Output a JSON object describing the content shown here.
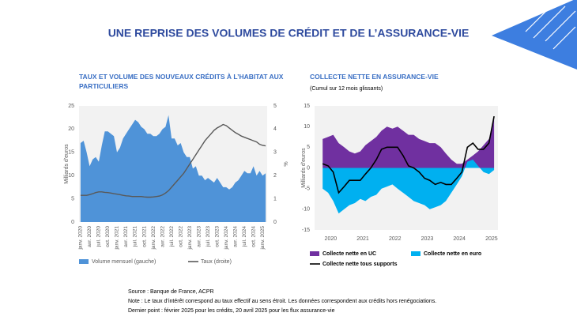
{
  "title": "UNE REPRISE DES VOLUMES DE CRÉDIT ET DE L’ASSURANCE-VIE",
  "chart_data": [
    {
      "type": "area",
      "title": "TAUX ET VOLUME DES NOUVEAUX CRÉDITS À L’HABITAT AUX PARTICULIERS",
      "y_label": "Milliards d'euros",
      "y2_label": "%",
      "categories": [
        "janv. 2020",
        null,
        null,
        "avr. 2020",
        null,
        null,
        "juil. 2020",
        null,
        null,
        "oct. 2020",
        null,
        null,
        "janv. 2021",
        null,
        null,
        "avr. 2021",
        null,
        null,
        "juil. 2021",
        null,
        null,
        "oct. 2021",
        null,
        null,
        "janv. 2022",
        null,
        null,
        "avr. 2022",
        null,
        null,
        "juil. 2022",
        null,
        null,
        "oct. 2022",
        null,
        null,
        "janv. 2023",
        null,
        null,
        "avr. 2023",
        null,
        null,
        "juil. 2023",
        null,
        null,
        "oct. 2023",
        null,
        null,
        "janv. 2024",
        null,
        null,
        "avr. 2024",
        null,
        null,
        "juil. 2024",
        null,
        null,
        "oct. 2024",
        null,
        null,
        "janv. 2025",
        null
      ],
      "series": [
        {
          "name": "Volume mensuel (gauche)",
          "type": "area",
          "color": "#4f93d8",
          "values": [
            17,
            17.5,
            15,
            12,
            13.5,
            14,
            13,
            16.5,
            19.5,
            19.5,
            19,
            18.5,
            15,
            16,
            18,
            19,
            20,
            21,
            22,
            21.5,
            20.5,
            20,
            19,
            19,
            18.5,
            18.5,
            19,
            20,
            20.5,
            23,
            18,
            18,
            16.5,
            17,
            15,
            14,
            14,
            11.5,
            12,
            10,
            10,
            9,
            9.5,
            9,
            8.5,
            9.5,
            8.5,
            7.5,
            7.5,
            7,
            7.5,
            8.5,
            9,
            10,
            11,
            10.5,
            10.5,
            12,
            10,
            11,
            10,
            10.5
          ]
        },
        {
          "name": "Taux (droite)",
          "type": "line",
          "axis": "y2",
          "color": "#595959",
          "values": [
            1.15,
            1.15,
            1.15,
            1.18,
            1.22,
            1.27,
            1.3,
            1.3,
            1.28,
            1.27,
            1.25,
            1.22,
            1.2,
            1.18,
            1.15,
            1.13,
            1.12,
            1.1,
            1.1,
            1.1,
            1.1,
            1.08,
            1.07,
            1.07,
            1.08,
            1.1,
            1.12,
            1.17,
            1.25,
            1.35,
            1.5,
            1.65,
            1.8,
            1.95,
            2.1,
            2.3,
            2.5,
            2.7,
            2.9,
            3.1,
            3.3,
            3.5,
            3.65,
            3.8,
            3.95,
            4.05,
            4.12,
            4.2,
            4.15,
            4.05,
            3.95,
            3.85,
            3.78,
            3.7,
            3.65,
            3.6,
            3.55,
            3.5,
            3.45,
            3.35,
            3.3,
            3.28
          ]
        }
      ],
      "ylim": [
        0,
        25
      ],
      "yticks": [
        0,
        5,
        10,
        15,
        20,
        25
      ],
      "y2lim": [
        0,
        5
      ],
      "y2ticks": [
        0,
        1,
        2,
        3,
        4,
        5
      ],
      "grid": false
    },
    {
      "type": "area",
      "title": "COLLECTE NETTE EN ASSURANCE-VIE",
      "subtitle": "(Cumul sur 12 mois glissants)",
      "y_label": "Milliards d'euros",
      "x": [
        2019.75,
        2019.92,
        2020.08,
        2020.25,
        2020.42,
        2020.58,
        2020.75,
        2020.92,
        2021.08,
        2021.25,
        2021.42,
        2021.58,
        2021.75,
        2021.92,
        2022.08,
        2022.25,
        2022.42,
        2022.58,
        2022.75,
        2022.92,
        2023.08,
        2023.25,
        2023.42,
        2023.58,
        2023.75,
        2023.92,
        2024.08,
        2024.25,
        2024.42,
        2024.58,
        2024.75,
        2024.92,
        2025.08
      ],
      "series": [
        {
          "name": "Collecte nette en UC",
          "type": "area",
          "color": "#7030a0",
          "values": [
            7,
            7.5,
            8,
            6,
            5,
            4,
            3.5,
            4,
            5.5,
            6.5,
            7.5,
            9,
            10,
            9.5,
            10,
            9,
            8,
            8,
            7,
            6.5,
            6,
            6,
            5,
            3.5,
            2,
            1,
            1,
            2,
            3,
            4,
            5.5,
            7,
            12
          ]
        },
        {
          "name": "Collecte nette en euro",
          "type": "area",
          "color": "#00b0f0",
          "values": [
            -5,
            -6,
            -8,
            -11,
            -10,
            -9,
            -8.5,
            -7.5,
            -8,
            -7,
            -6.5,
            -5,
            -4.5,
            -4,
            -5,
            -6,
            -7,
            -8,
            -8.5,
            -9,
            -10,
            -9.5,
            -9,
            -8,
            -6,
            -4,
            -2,
            1.5,
            2,
            0.5,
            -1,
            -1.5,
            -0.5
          ]
        },
        {
          "name": "Collecte nette tous supports",
          "type": "line",
          "color": "#000000",
          "values": [
            1,
            0.5,
            -1,
            -6,
            -4.5,
            -3,
            -3,
            -3,
            -1.5,
            0,
            2,
            4.5,
            5,
            5,
            5,
            3,
            0.5,
            0,
            -1,
            -2.5,
            -3,
            -4,
            -3.5,
            -4,
            -4,
            -2.5,
            -1,
            5,
            6,
            4.5,
            4.5,
            6,
            12.5
          ]
        }
      ],
      "xlim": [
        2019.5,
        2025.2
      ],
      "xticks": [
        2020,
        2021,
        2022,
        2023,
        2024,
        2025
      ],
      "ylim": [
        -15,
        15
      ],
      "yticks": [
        -15,
        -10,
        -5,
        0,
        5,
        10,
        15
      ],
      "grid": false
    }
  ],
  "footer": [
    "Source : Banque de France, ACPR",
    "Note : Le taux d’intérêt correspond au taux effectif au sens étroit. Les données correspondent aux crédits hors renégociations.",
    "Dernier point : février 2025 pour les crédits,  20 avril 2025 pour les flux assurance-vie"
  ]
}
